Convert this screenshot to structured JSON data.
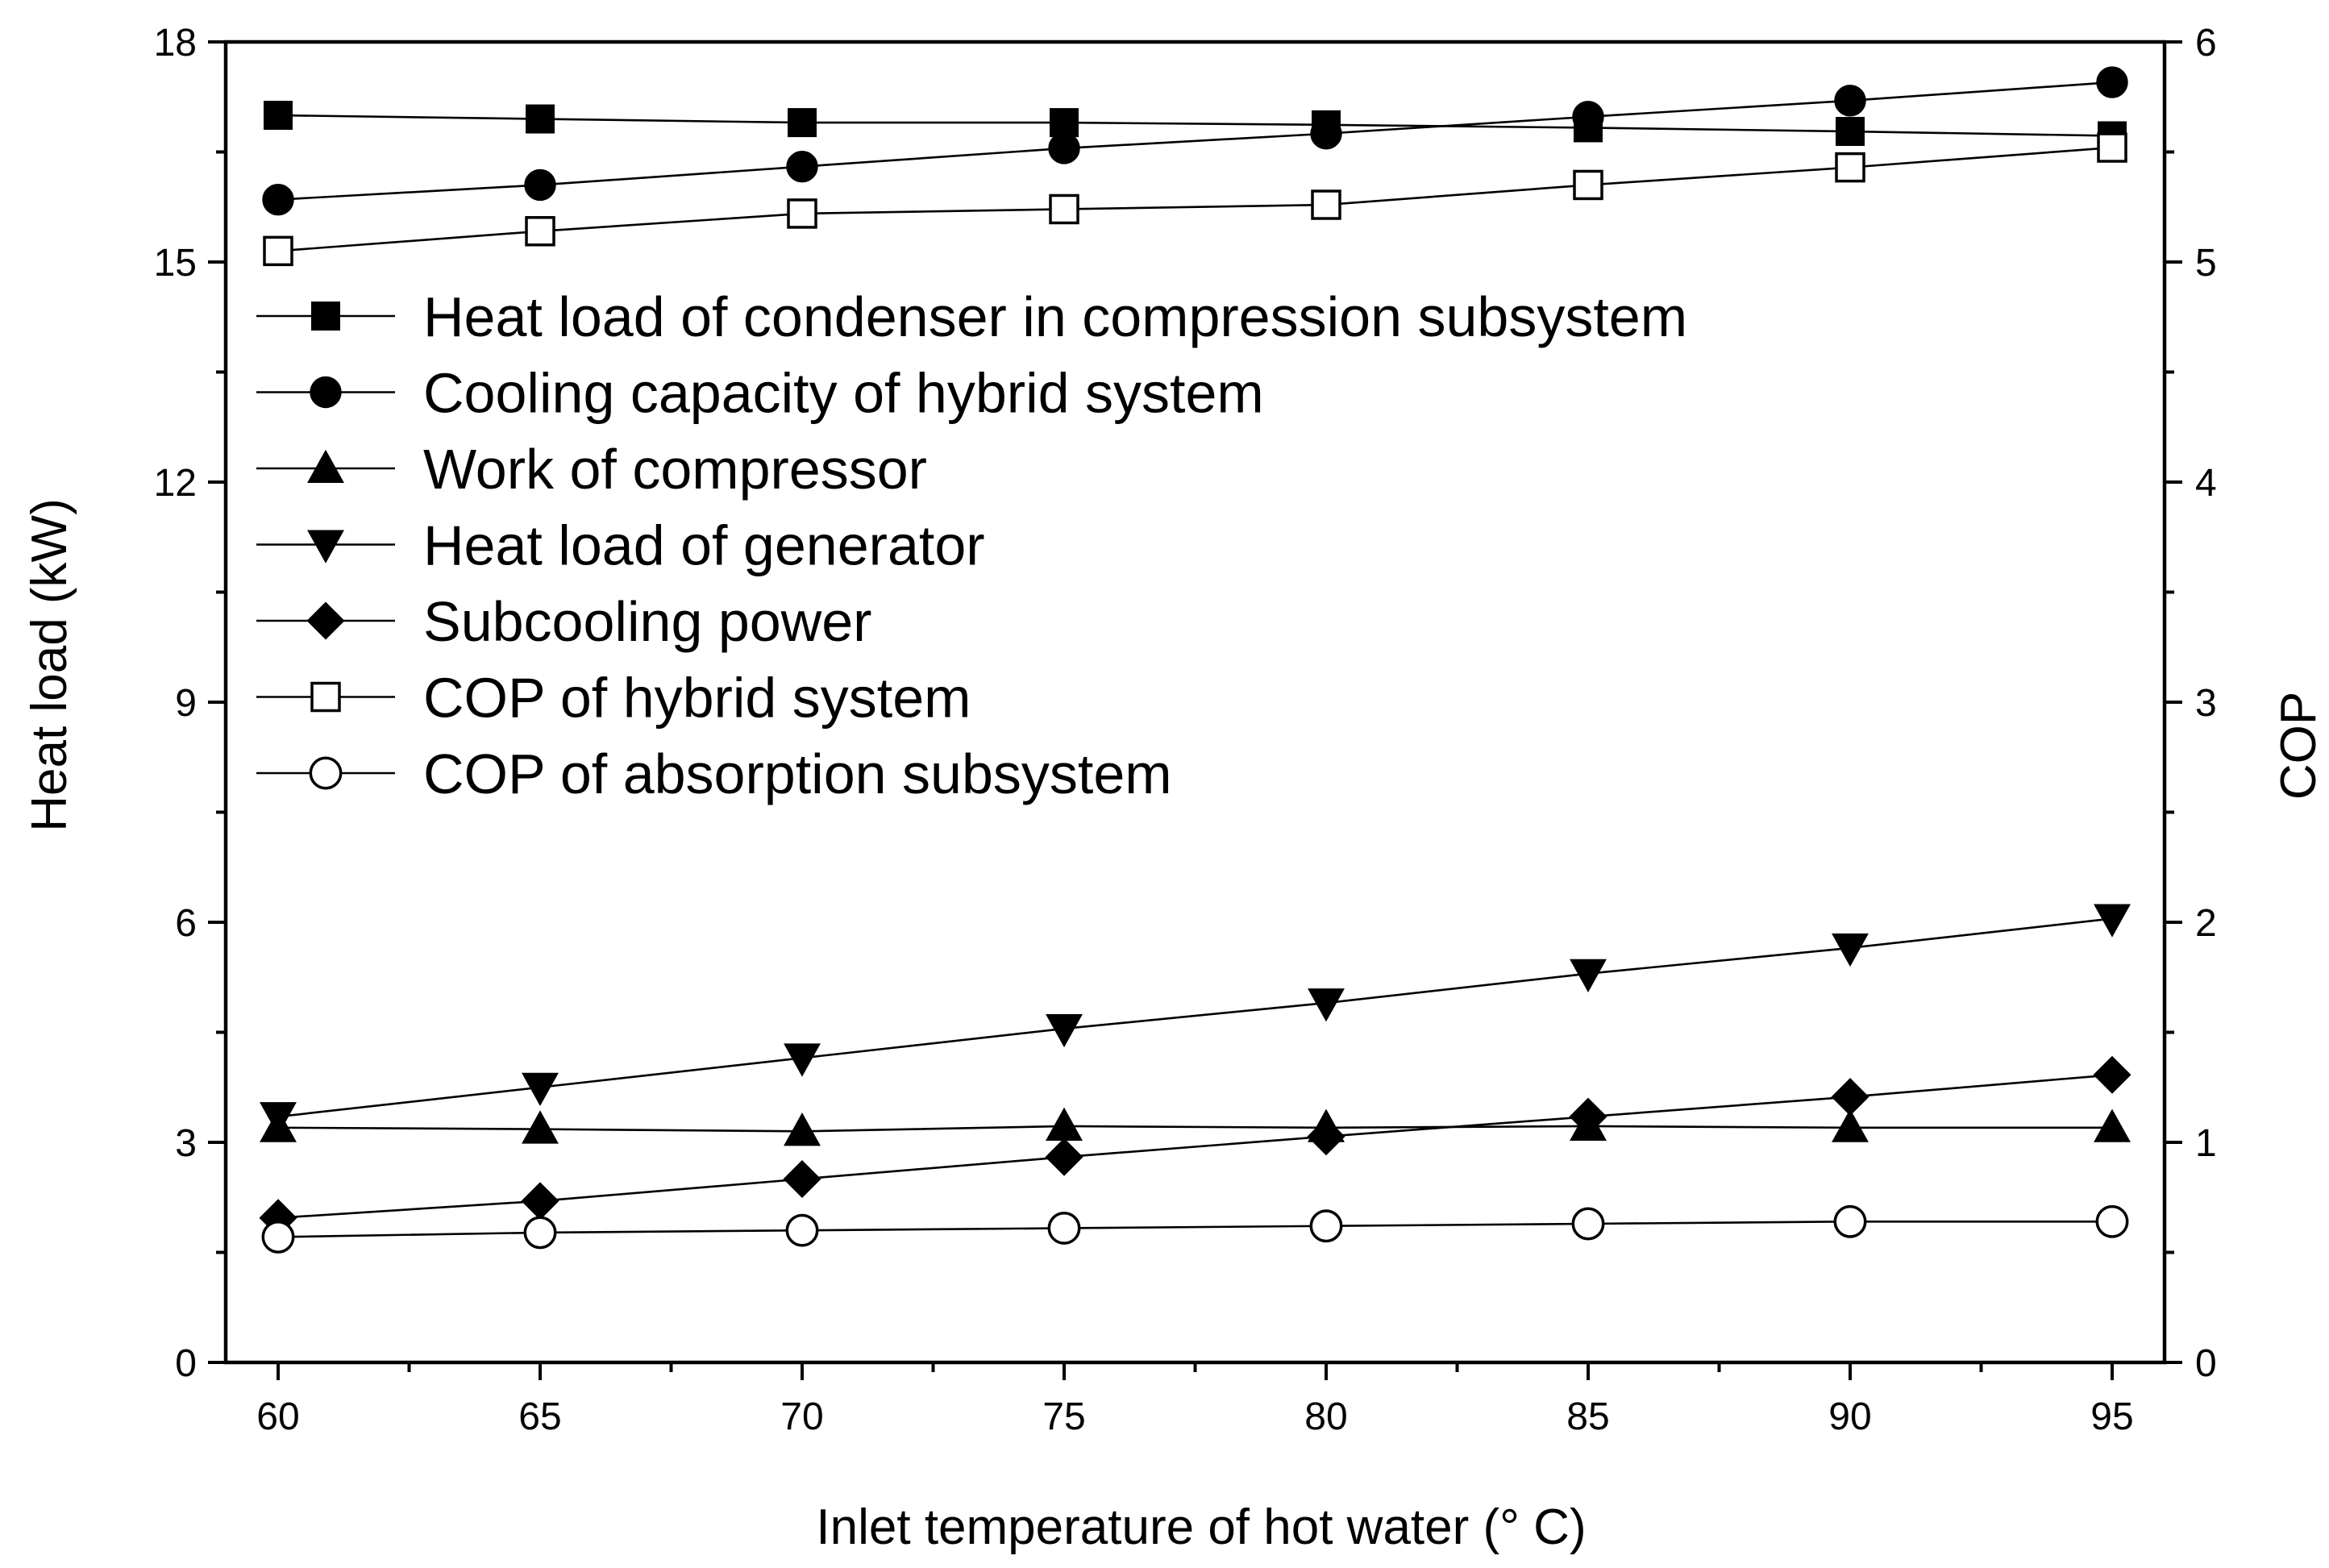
{
  "chart_data": {
    "type": "line",
    "title": "",
    "xlabel": "Inlet temperature of hot water (° C)",
    "ylabel_left": "Heat load (kW)",
    "ylabel_right": "COP",
    "x": [
      60,
      65,
      70,
      75,
      80,
      85,
      90,
      95
    ],
    "xlim": [
      59,
      96
    ],
    "ylim_left": [
      0,
      18
    ],
    "ylim_right": [
      0,
      6
    ],
    "x_ticks": [
      60,
      65,
      70,
      75,
      80,
      85,
      90,
      95
    ],
    "y_left_ticks": [
      0,
      3,
      6,
      9,
      12,
      15,
      18
    ],
    "y_right_ticks": [
      0,
      1,
      2,
      3,
      4,
      5,
      6
    ],
    "legend_position": "upper-left",
    "series": [
      {
        "name": "Heat load of condenser in compression subsystem",
        "axis": "left",
        "marker": "square-filled",
        "values": [
          17.0,
          16.95,
          16.9,
          16.9,
          16.87,
          16.83,
          16.78,
          16.72
        ]
      },
      {
        "name": "Cooling capacity of hybrid system",
        "axis": "left",
        "marker": "circle-filled",
        "values": [
          15.85,
          16.05,
          16.3,
          16.55,
          16.75,
          16.98,
          17.2,
          17.45
        ]
      },
      {
        "name": "Work of compressor",
        "axis": "left",
        "marker": "triangle-up-filled",
        "values": [
          3.2,
          3.18,
          3.15,
          3.22,
          3.2,
          3.22,
          3.2,
          3.2
        ]
      },
      {
        "name": "Heat load of generator",
        "axis": "left",
        "marker": "triangle-down-filled",
        "values": [
          3.35,
          3.75,
          4.15,
          4.55,
          4.9,
          5.3,
          5.65,
          6.05
        ]
      },
      {
        "name": "Subcooling power",
        "axis": "left",
        "marker": "diamond-filled",
        "values": [
          1.97,
          2.2,
          2.5,
          2.8,
          3.08,
          3.35,
          3.62,
          3.92
        ]
      },
      {
        "name": "COP of hybrid system",
        "axis": "right",
        "marker": "square-open",
        "values": [
          5.05,
          5.14,
          5.22,
          5.24,
          5.26,
          5.35,
          5.43,
          5.52
        ]
      },
      {
        "name": "COP of absorption subsystem",
        "axis": "right",
        "marker": "circle-open",
        "values": [
          0.57,
          0.59,
          0.6,
          0.61,
          0.62,
          0.63,
          0.64,
          0.64
        ]
      }
    ]
  }
}
